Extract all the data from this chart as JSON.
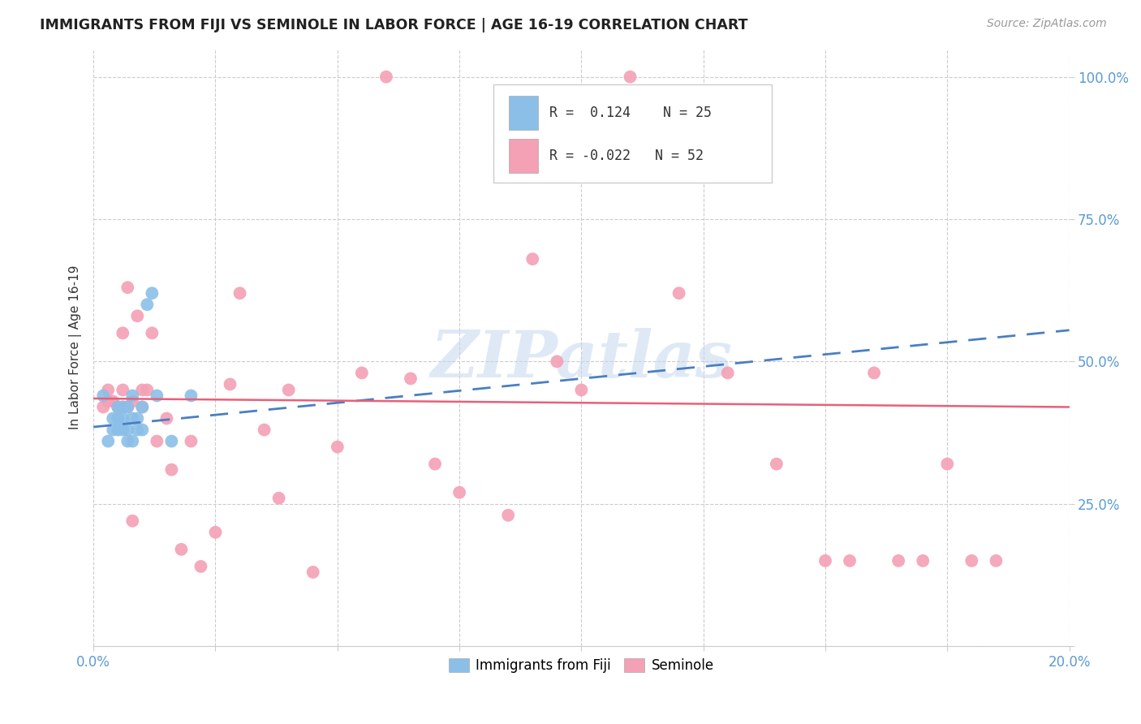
{
  "title": "IMMIGRANTS FROM FIJI VS SEMINOLE IN LABOR FORCE | AGE 16-19 CORRELATION CHART",
  "source": "Source: ZipAtlas.com",
  "ylabel": "In Labor Force | Age 16-19",
  "xlim": [
    0.0,
    0.2
  ],
  "ylim": [
    0.0,
    1.05
  ],
  "xticks": [
    0.0,
    0.025,
    0.05,
    0.075,
    0.1,
    0.125,
    0.15,
    0.175,
    0.2
  ],
  "xticklabels": [
    "0.0%",
    "",
    "",
    "",
    "",
    "",
    "",
    "",
    "20.0%"
  ],
  "ytick_positions": [
    0.0,
    0.25,
    0.5,
    0.75,
    1.0
  ],
  "yticklabels": [
    "",
    "25.0%",
    "50.0%",
    "75.0%",
    "100.0%"
  ],
  "fiji_color": "#8bbfe8",
  "seminole_color": "#f4a0b5",
  "fiji_line_color": "#4a7fc1",
  "seminole_line_color": "#e8607a",
  "fiji_R": 0.124,
  "fiji_N": 25,
  "seminole_R": -0.022,
  "seminole_N": 52,
  "watermark": "ZIPatlas",
  "background_color": "#ffffff",
  "grid_color": "#cccccc",
  "axis_color": "#5b9bd5",
  "fiji_x": [
    0.002,
    0.003,
    0.004,
    0.004,
    0.005,
    0.005,
    0.005,
    0.006,
    0.006,
    0.006,
    0.007,
    0.007,
    0.007,
    0.008,
    0.008,
    0.008,
    0.009,
    0.009,
    0.01,
    0.01,
    0.011,
    0.012,
    0.013,
    0.016,
    0.02
  ],
  "fiji_y": [
    0.44,
    0.36,
    0.38,
    0.4,
    0.38,
    0.4,
    0.42,
    0.38,
    0.4,
    0.42,
    0.36,
    0.38,
    0.42,
    0.36,
    0.4,
    0.44,
    0.38,
    0.4,
    0.38,
    0.42,
    0.6,
    0.62,
    0.44,
    0.36,
    0.44
  ],
  "seminole_x": [
    0.002,
    0.003,
    0.003,
    0.004,
    0.005,
    0.006,
    0.006,
    0.006,
    0.007,
    0.007,
    0.008,
    0.008,
    0.009,
    0.01,
    0.01,
    0.011,
    0.012,
    0.013,
    0.015,
    0.016,
    0.018,
    0.02,
    0.022,
    0.025,
    0.028,
    0.03,
    0.035,
    0.038,
    0.04,
    0.045,
    0.05,
    0.055,
    0.06,
    0.065,
    0.07,
    0.075,
    0.085,
    0.09,
    0.095,
    0.1,
    0.11,
    0.12,
    0.13,
    0.14,
    0.15,
    0.155,
    0.16,
    0.165,
    0.17,
    0.175,
    0.18,
    0.185
  ],
  "seminole_y": [
    0.42,
    0.43,
    0.45,
    0.43,
    0.42,
    0.42,
    0.45,
    0.55,
    0.42,
    0.63,
    0.43,
    0.22,
    0.58,
    0.42,
    0.45,
    0.45,
    0.55,
    0.36,
    0.4,
    0.31,
    0.17,
    0.36,
    0.14,
    0.2,
    0.46,
    0.62,
    0.38,
    0.26,
    0.45,
    0.13,
    0.35,
    0.48,
    1.0,
    0.47,
    0.32,
    0.27,
    0.23,
    0.68,
    0.5,
    0.45,
    1.0,
    0.62,
    0.48,
    0.32,
    0.15,
    0.15,
    0.48,
    0.15,
    0.15,
    0.32,
    0.15,
    0.15
  ],
  "fiji_trend_x": [
    0.0,
    0.2
  ],
  "fiji_trend_y": [
    0.385,
    0.555
  ],
  "seminole_trend_x": [
    0.0,
    0.2
  ],
  "seminole_trend_y": [
    0.435,
    0.42
  ]
}
